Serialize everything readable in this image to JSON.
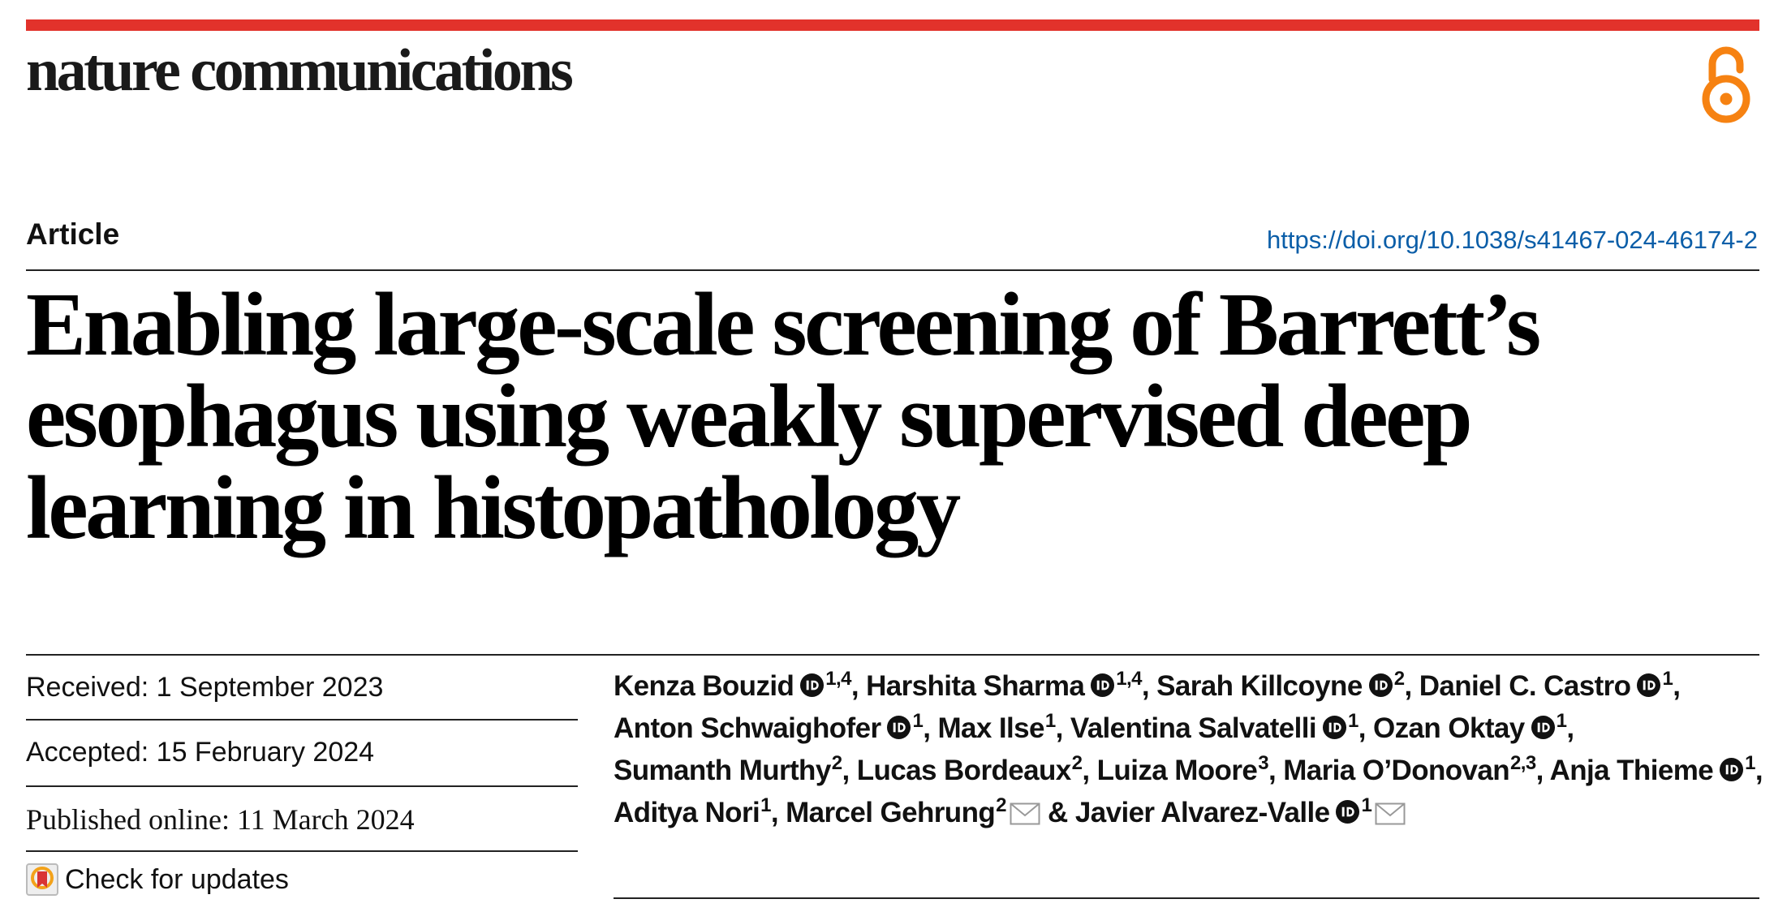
{
  "header": {
    "journal_name": "nature communications",
    "open_access_icon": "open-access-lock-icon",
    "accent_color": "#e2322b",
    "oa_color": "#f68212"
  },
  "article": {
    "type": "Article",
    "doi": "https://doi.org/10.1038/s41467-024-46174-2",
    "title": "Enabling large-scale screening of Barrett’s esophagus using weakly supervised deep learning in histopathology"
  },
  "dates": {
    "received": "Received: 1 September 2023",
    "accepted": "Accepted: 15 February 2024",
    "published": "Published online: 11 March 2024"
  },
  "updates": {
    "label": "Check for updates",
    "icon": "check-for-updates-icon"
  },
  "authors": [
    {
      "name": "Kenza Bouzid",
      "orcid": true,
      "aff": "1,4",
      "mail": false,
      "lead": "",
      "sep": ","
    },
    {
      "name": "Harshita Sharma",
      "orcid": true,
      "aff": "1,4",
      "mail": false,
      "lead": "",
      "sep": ","
    },
    {
      "name": "Sarah Killcoyne",
      "orcid": true,
      "aff": "2",
      "mail": false,
      "lead": "",
      "sep": ","
    },
    {
      "name": "Daniel C. Castro",
      "orcid": true,
      "aff": "1",
      "mail": false,
      "lead": "",
      "sep": ","
    },
    {
      "name": "Anton Schwaighofer",
      "orcid": true,
      "aff": "1",
      "mail": false,
      "lead": "",
      "sep": ","
    },
    {
      "name": "Max Ilse",
      "orcid": false,
      "aff": "1",
      "mail": false,
      "lead": "",
      "sep": ","
    },
    {
      "name": "Valentina Salvatelli",
      "orcid": true,
      "aff": "1",
      "mail": false,
      "lead": "",
      "sep": ","
    },
    {
      "name": "Ozan Oktay",
      "orcid": true,
      "aff": "1",
      "mail": false,
      "lead": "",
      "sep": ","
    },
    {
      "name": "Sumanth Murthy",
      "orcid": false,
      "aff": "2",
      "mail": false,
      "lead": "",
      "sep": ","
    },
    {
      "name": "Lucas Bordeaux",
      "orcid": false,
      "aff": "2",
      "mail": false,
      "lead": "",
      "sep": ","
    },
    {
      "name": "Luiza Moore",
      "orcid": false,
      "aff": "3",
      "mail": false,
      "lead": "",
      "sep": ","
    },
    {
      "name": "Maria O’Donovan",
      "orcid": false,
      "aff": "2,3",
      "mail": false,
      "lead": "",
      "sep": ","
    },
    {
      "name": "Anja Thieme",
      "orcid": true,
      "aff": "1",
      "mail": false,
      "lead": "",
      "sep": ","
    },
    {
      "name": "Aditya Nori",
      "orcid": false,
      "aff": "1",
      "mail": false,
      "lead": "",
      "sep": ","
    },
    {
      "name": "Marcel Gehrung",
      "orcid": false,
      "aff": "2",
      "mail": true,
      "lead": "",
      "sep": ""
    },
    {
      "name": "Javier Alvarez-Valle",
      "orcid": true,
      "aff": "1",
      "mail": true,
      "lead": "& ",
      "sep": ""
    }
  ]
}
